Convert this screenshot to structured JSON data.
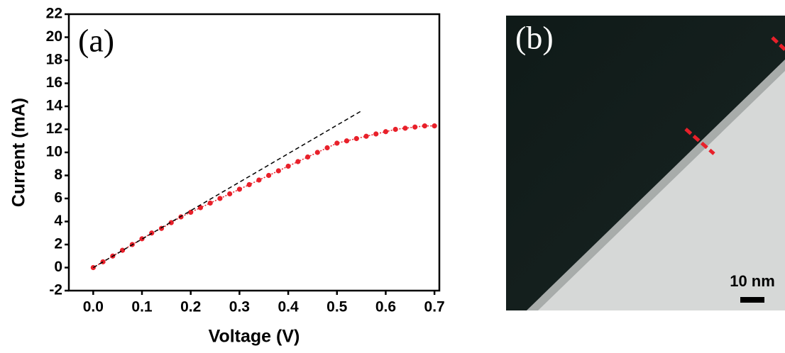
{
  "chart_data": {
    "type": "line",
    "panel_label": "(a)",
    "x_label": "Voltage (V)",
    "y_label": "Current (mA)",
    "xlim": [
      -0.05,
      0.71
    ],
    "ylim": [
      -2,
      22
    ],
    "xticks": [
      {
        "value": 0,
        "label": "0.0"
      },
      0.1,
      0.2,
      0.3,
      0.4,
      0.5,
      0.6,
      0.7
    ],
    "yticks": [
      -2,
      0,
      2,
      4,
      6,
      8,
      10,
      12,
      14,
      16,
      18,
      20,
      22
    ],
    "series": [
      {
        "color": "#e8202a",
        "style": "dots",
        "x": [
          0,
          0.02,
          0.04,
          0.06,
          0.08,
          0.1,
          0.12,
          0.14,
          0.16,
          0.18,
          0.2,
          0.22,
          0.24,
          0.26,
          0.28,
          0.3,
          0.32,
          0.34,
          0.36,
          0.38,
          0.4,
          0.42,
          0.44,
          0.46,
          0.48,
          0.5,
          0.52,
          0.54,
          0.56,
          0.58,
          0.6,
          0.62,
          0.64,
          0.66,
          0.68,
          0.7
        ],
        "values": [
          0,
          0.5,
          1.0,
          1.5,
          2.0,
          2.5,
          3.0,
          3.4,
          3.9,
          4.4,
          4.8,
          5.2,
          5.6,
          6.0,
          6.4,
          6.8,
          7.2,
          7.6,
          8.0,
          8.4,
          8.8,
          9.2,
          9.6,
          10.0,
          10.4,
          10.8,
          11.0,
          11.2,
          11.4,
          11.6,
          11.8,
          12.0,
          12.1,
          12.2,
          12.3,
          12.3
        ]
      },
      {
        "color": "#000000",
        "style": "dashed",
        "x": [
          0,
          0.55
        ],
        "values": [
          0,
          13.6
        ]
      }
    ]
  },
  "image_panel": {
    "panel_label": "(b)",
    "scale_bar": "10 nm"
  }
}
